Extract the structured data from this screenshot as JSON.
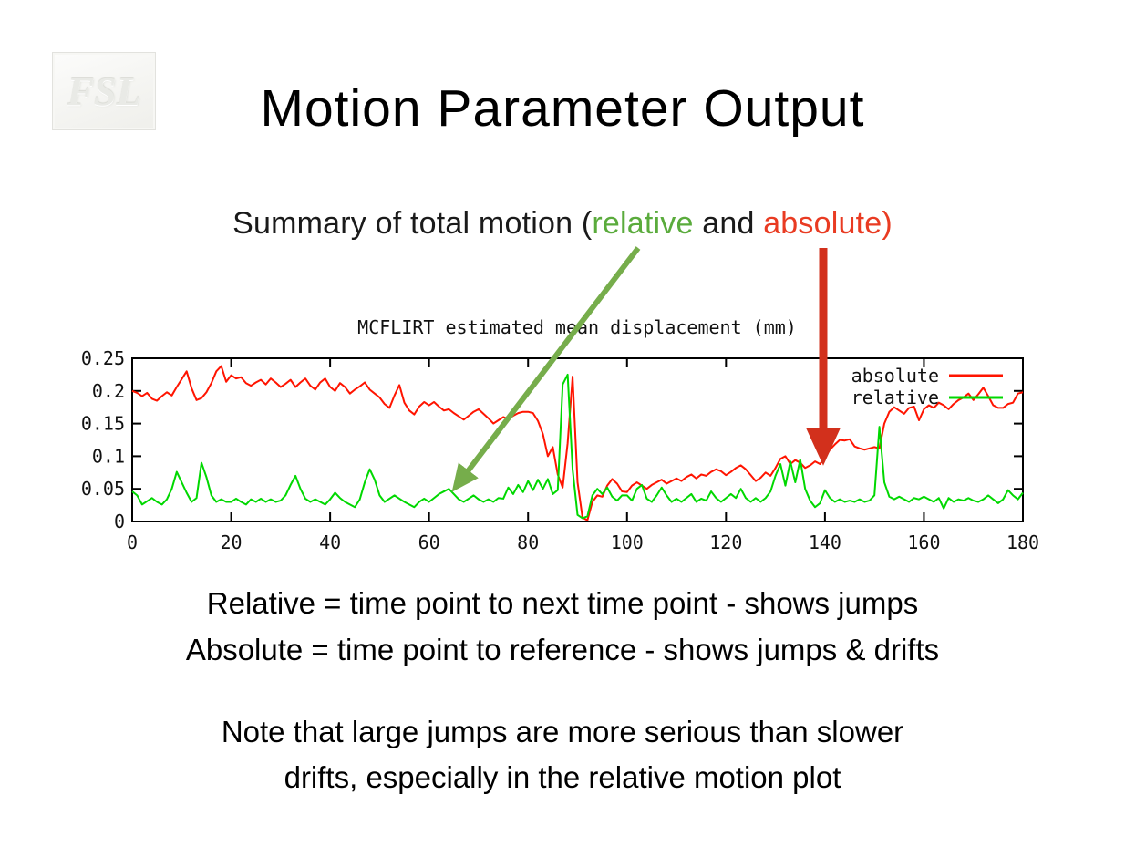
{
  "palette": {
    "background": "#ffffff",
    "text": "#000000",
    "relative_green": "#5aab3c",
    "absolute_red": "#e93b22",
    "arrow_green": "#76ad4b",
    "arrow_red": "#d2301c",
    "chart_red": "#ff1400",
    "chart_green": "#00d800"
  },
  "logo": {
    "text": "FSL"
  },
  "title": "Motion Parameter Output",
  "subtitle": {
    "parts": [
      {
        "text": "Summary of total motion (",
        "color": "#1a1a1a"
      },
      {
        "text": "relative",
        "color": "#5aab3c"
      },
      {
        "text": " and ",
        "color": "#1a1a1a"
      },
      {
        "text": "absolute",
        "color": "#e93b22"
      },
      {
        "text": ")",
        "color": "#e93b22"
      }
    ]
  },
  "definitions": {
    "line1": "Relative = time point to next time point - shows jumps",
    "line2": "Absolute = time point to reference - shows jumps & drifts"
  },
  "note": {
    "line1": "Note that large jumps are more serious than slower",
    "line2": "drifts, especially in the relative motion plot"
  },
  "annotations": {
    "green_arrow": {
      "from": [
        700,
        272
      ],
      "to": [
        500,
        534
      ],
      "color": "#76ad4b",
      "width": 6
    },
    "red_arrow": {
      "from": [
        903,
        272
      ],
      "to": [
        903,
        500
      ],
      "color": "#d2301c",
      "width": 9
    }
  },
  "chart_data": {
    "type": "line",
    "title": "MCFLIRT estimated mean displacement (mm)",
    "xlim": [
      0,
      180
    ],
    "ylim": [
      0,
      0.25
    ],
    "x_ticks": [
      0,
      20,
      40,
      60,
      80,
      100,
      120,
      140,
      160,
      180
    ],
    "y_ticks": [
      0,
      0.05,
      0.1,
      0.15,
      0.2,
      0.25
    ],
    "y_tick_labels": [
      "0",
      "0.05",
      "0.1",
      "0.15",
      "0.2",
      "0.25"
    ],
    "grid": false,
    "legend_position": "top-right",
    "x_step": 1,
    "series": [
      {
        "name": "absolute",
        "color": "#ff1400",
        "values": [
          0.2,
          0.197,
          0.192,
          0.197,
          0.188,
          0.185,
          0.192,
          0.198,
          0.193,
          0.206,
          0.218,
          0.23,
          0.204,
          0.186,
          0.189,
          0.198,
          0.212,
          0.23,
          0.238,
          0.214,
          0.224,
          0.219,
          0.221,
          0.212,
          0.208,
          0.213,
          0.217,
          0.21,
          0.219,
          0.213,
          0.206,
          0.211,
          0.217,
          0.206,
          0.213,
          0.219,
          0.208,
          0.202,
          0.213,
          0.219,
          0.206,
          0.2,
          0.212,
          0.206,
          0.196,
          0.202,
          0.207,
          0.213,
          0.202,
          0.196,
          0.19,
          0.18,
          0.174,
          0.193,
          0.209,
          0.182,
          0.17,
          0.164,
          0.176,
          0.183,
          0.178,
          0.183,
          0.176,
          0.17,
          0.172,
          0.166,
          0.161,
          0.156,
          0.162,
          0.168,
          0.172,
          0.165,
          0.158,
          0.15,
          0.155,
          0.16,
          0.157,
          0.162,
          0.166,
          0.168,
          0.168,
          0.166,
          0.154,
          0.134,
          0.1,
          0.114,
          0.072,
          0.052,
          0.12,
          0.222,
          0.06,
          0.006,
          0.002,
          0.03,
          0.04,
          0.038,
          0.055,
          0.065,
          0.058,
          0.046,
          0.045,
          0.055,
          0.06,
          0.055,
          0.05,
          0.056,
          0.06,
          0.064,
          0.058,
          0.062,
          0.066,
          0.062,
          0.068,
          0.072,
          0.066,
          0.072,
          0.07,
          0.076,
          0.08,
          0.077,
          0.071,
          0.076,
          0.082,
          0.086,
          0.08,
          0.071,
          0.062,
          0.067,
          0.075,
          0.07,
          0.082,
          0.096,
          0.1,
          0.088,
          0.094,
          0.09,
          0.082,
          0.086,
          0.092,
          0.088,
          0.098,
          0.11,
          0.118,
          0.125,
          0.124,
          0.126,
          0.115,
          0.112,
          0.11,
          0.112,
          0.114,
          0.112,
          0.15,
          0.168,
          0.175,
          0.17,
          0.165,
          0.174,
          0.176,
          0.155,
          0.172,
          0.178,
          0.174,
          0.182,
          0.178,
          0.172,
          0.18,
          0.186,
          0.19,
          0.196,
          0.186,
          0.195,
          0.205,
          0.192,
          0.178,
          0.174,
          0.174,
          0.18,
          0.182,
          0.196,
          0.198
        ]
      },
      {
        "name": "relative",
        "color": "#00d800",
        "values": [
          0.046,
          0.04,
          0.026,
          0.031,
          0.036,
          0.03,
          0.026,
          0.034,
          0.05,
          0.076,
          0.06,
          0.044,
          0.03,
          0.036,
          0.09,
          0.068,
          0.04,
          0.03,
          0.034,
          0.03,
          0.03,
          0.035,
          0.03,
          0.026,
          0.034,
          0.03,
          0.035,
          0.03,
          0.034,
          0.03,
          0.032,
          0.04,
          0.056,
          0.07,
          0.05,
          0.035,
          0.03,
          0.034,
          0.03,
          0.026,
          0.034,
          0.044,
          0.036,
          0.03,
          0.026,
          0.022,
          0.034,
          0.06,
          0.08,
          0.064,
          0.04,
          0.03,
          0.035,
          0.04,
          0.035,
          0.03,
          0.026,
          0.022,
          0.03,
          0.035,
          0.03,
          0.036,
          0.042,
          0.046,
          0.05,
          0.042,
          0.034,
          0.03,
          0.035,
          0.04,
          0.034,
          0.03,
          0.034,
          0.03,
          0.036,
          0.035,
          0.052,
          0.042,
          0.056,
          0.045,
          0.062,
          0.048,
          0.064,
          0.05,
          0.065,
          0.042,
          0.048,
          0.21,
          0.225,
          0.08,
          0.01,
          0.005,
          0.008,
          0.04,
          0.05,
          0.042,
          0.052,
          0.038,
          0.032,
          0.04,
          0.04,
          0.032,
          0.05,
          0.056,
          0.035,
          0.03,
          0.04,
          0.052,
          0.04,
          0.03,
          0.035,
          0.03,
          0.036,
          0.042,
          0.03,
          0.035,
          0.032,
          0.046,
          0.036,
          0.03,
          0.036,
          0.042,
          0.036,
          0.05,
          0.036,
          0.03,
          0.036,
          0.03,
          0.036,
          0.046,
          0.07,
          0.088,
          0.055,
          0.092,
          0.06,
          0.095,
          0.05,
          0.032,
          0.022,
          0.028,
          0.048,
          0.036,
          0.03,
          0.034,
          0.03,
          0.032,
          0.03,
          0.034,
          0.03,
          0.032,
          0.04,
          0.145,
          0.06,
          0.038,
          0.034,
          0.038,
          0.034,
          0.03,
          0.036,
          0.034,
          0.038,
          0.034,
          0.03,
          0.036,
          0.02,
          0.036,
          0.03,
          0.034,
          0.032,
          0.036,
          0.032,
          0.03,
          0.034,
          0.04,
          0.034,
          0.028,
          0.034,
          0.048,
          0.04,
          0.034,
          0.044
        ]
      }
    ]
  }
}
